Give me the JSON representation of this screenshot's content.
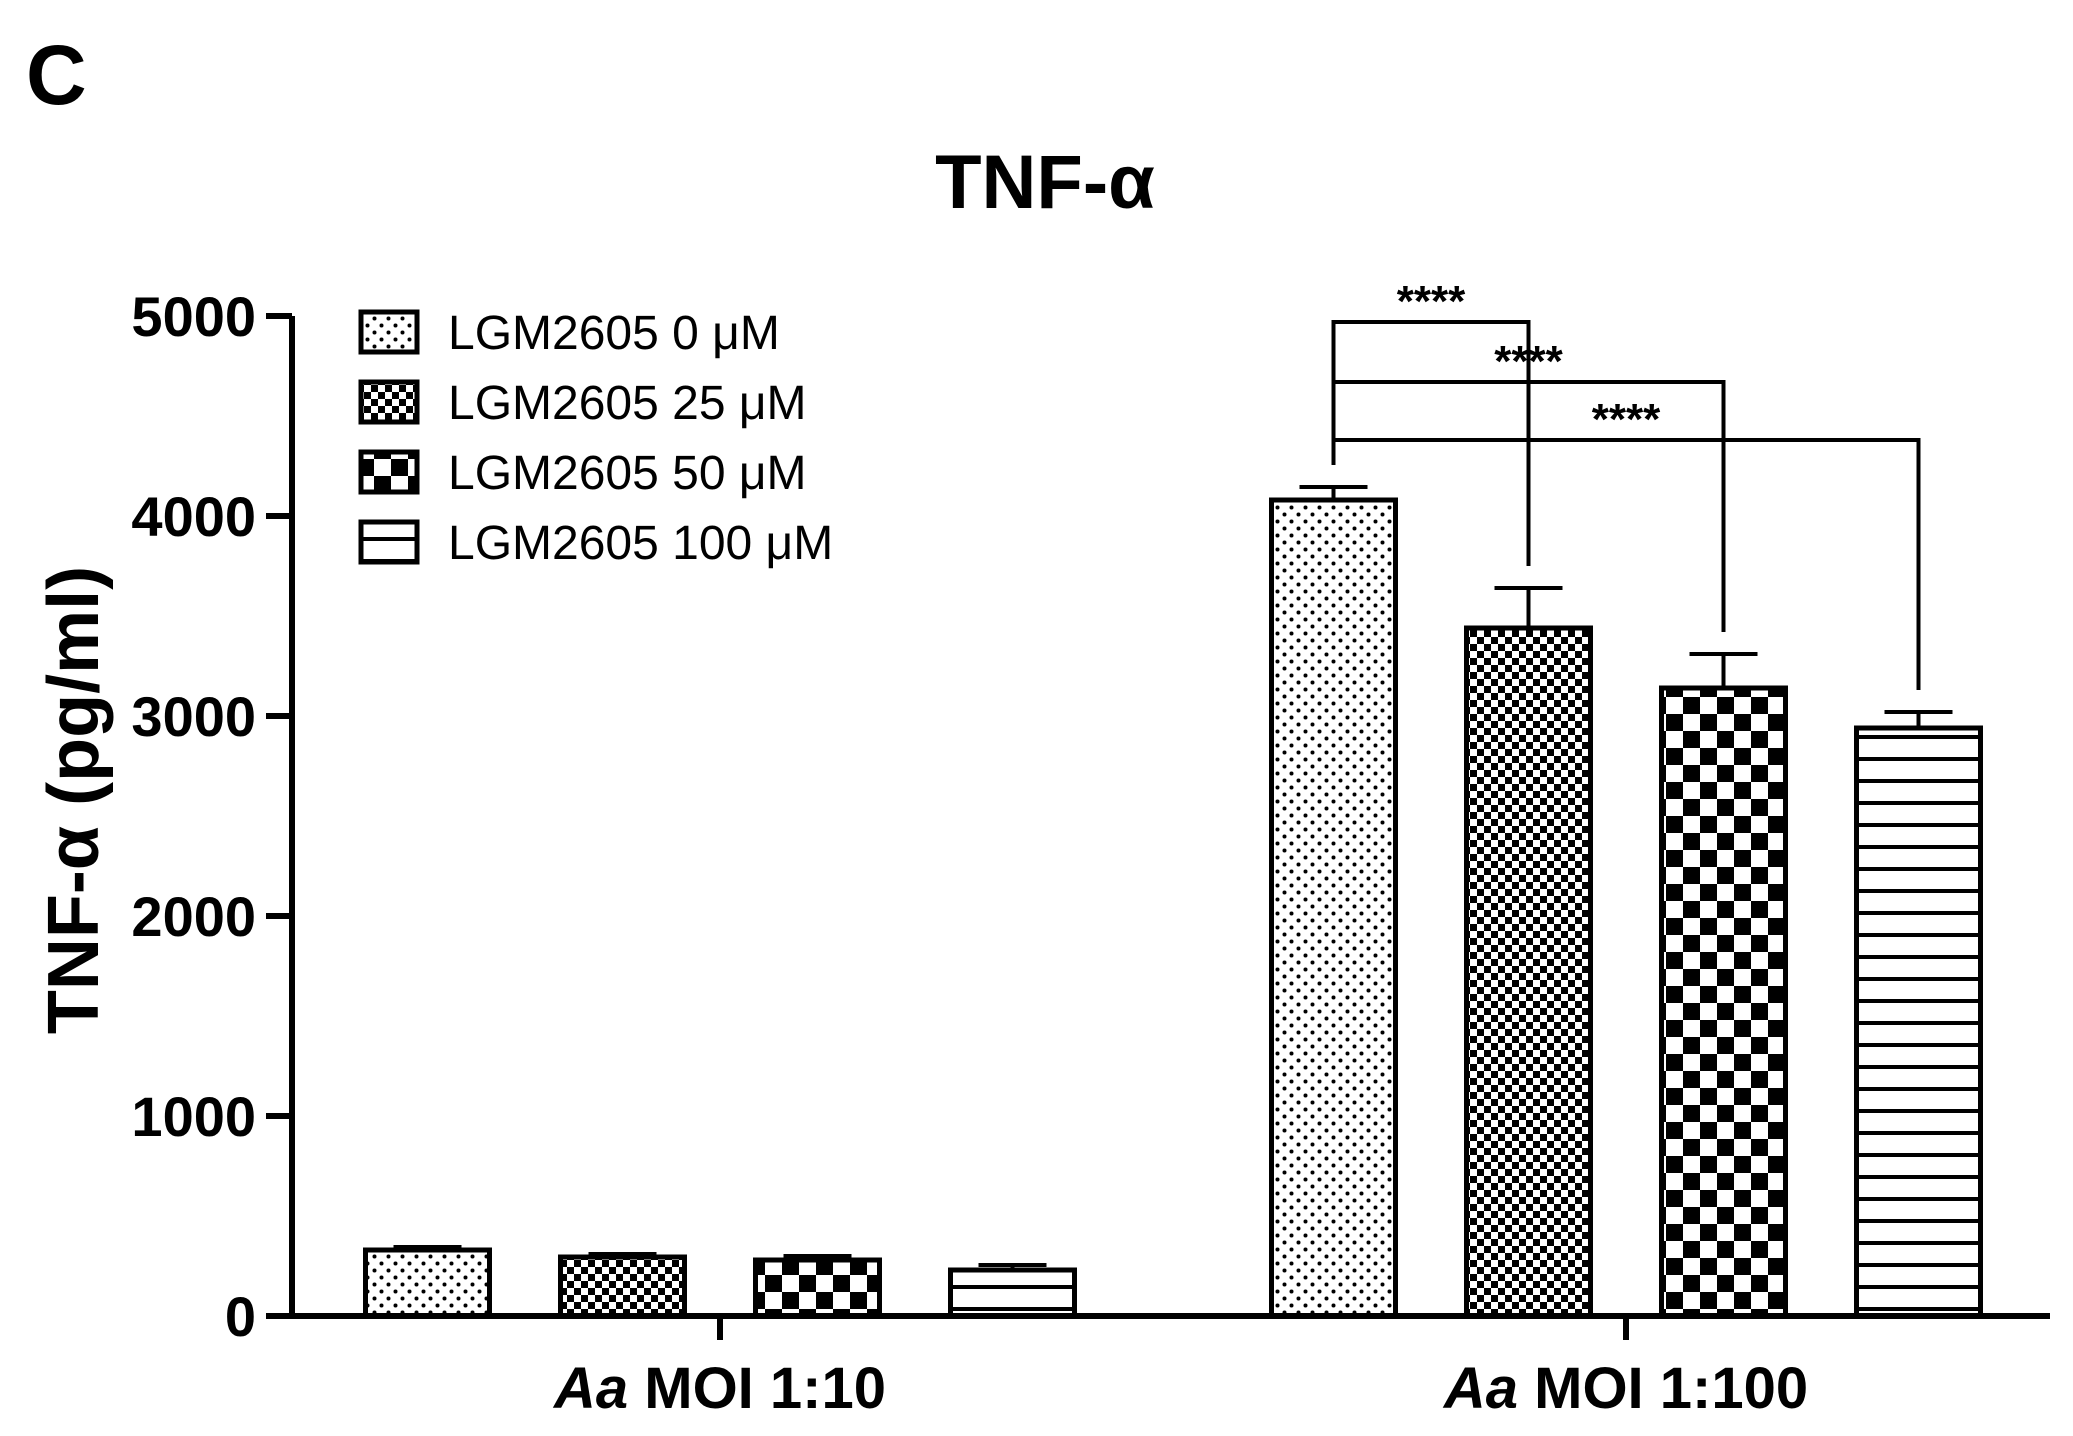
{
  "panel_label": "C",
  "chart_data": {
    "type": "bar",
    "title": "TNF-α",
    "ylabel": "TNF-α (pg/ml)",
    "xlabel": "",
    "ylim": [
      0,
      5000
    ],
    "yticks": [
      0,
      1000,
      2000,
      3000,
      4000,
      5000
    ],
    "ytick_labels": [
      "0",
      "1000",
      "2000",
      "3000",
      "4000",
      "5000"
    ],
    "categories": [
      {
        "prefix": "Aa",
        "rest": " MOI 1:10"
      },
      {
        "prefix": "Aa",
        "rest": " MOI 1:100"
      }
    ],
    "series": [
      {
        "name": "LGM2605 0 μM",
        "pattern": "dots",
        "values": [
          330,
          4080
        ],
        "errors": [
          15,
          65
        ]
      },
      {
        "name": "LGM2605 25 μM",
        "pattern": "checker-small",
        "values": [
          295,
          3440
        ],
        "errors": [
          15,
          200
        ]
      },
      {
        "name": "LGM2605 50 μM",
        "pattern": "checker-large",
        "values": [
          280,
          3140
        ],
        "errors": [
          20,
          170
        ]
      },
      {
        "name": "LGM2605 100 μM",
        "pattern": "hstripes",
        "values": [
          230,
          2940
        ],
        "errors": [
          25,
          80
        ]
      }
    ],
    "legend_position": "top-left",
    "grid": false,
    "significance": [
      {
        "group": 1,
        "from_series": 0,
        "to_series": 1,
        "label": "****"
      },
      {
        "group": 1,
        "from_series": 0,
        "to_series": 2,
        "label": "****"
      },
      {
        "group": 1,
        "from_series": 0,
        "to_series": 3,
        "label": "****"
      }
    ]
  }
}
